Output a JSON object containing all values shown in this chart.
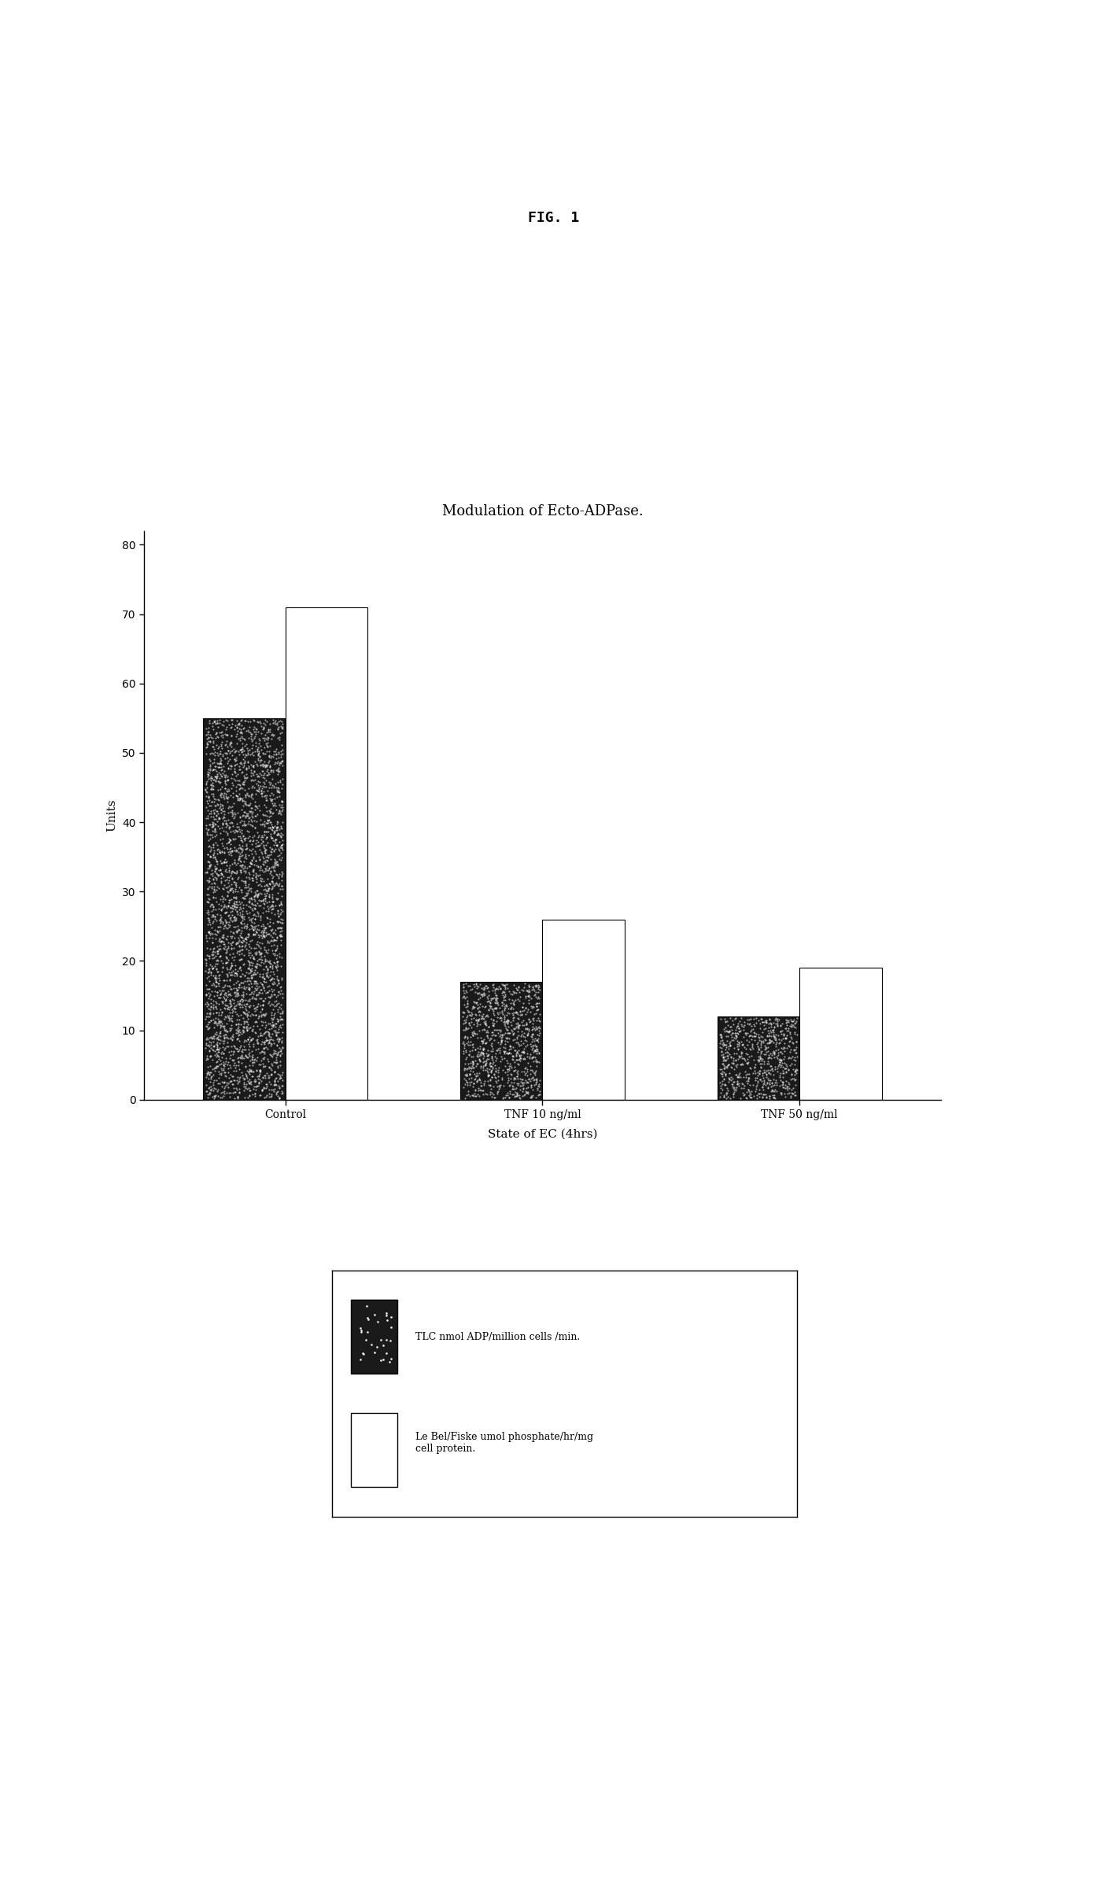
{
  "fig_title": "FIG. 1",
  "chart_title": "Modulation of Ecto-ADPase.",
  "xlabel": "State of EC (4hrs)",
  "ylabel": "Units",
  "categories": [
    "Control",
    "TNF 10 ng/ml",
    "TNF 50 ng/ml"
  ],
  "tlc_values": [
    55,
    17,
    12
  ],
  "lebel_fiske_values": [
    71,
    26,
    19
  ],
  "ylim": [
    0,
    82
  ],
  "yticks": [
    0,
    10,
    20,
    30,
    40,
    50,
    60,
    70,
    80
  ],
  "bar_width": 0.32,
  "tlc_color": "#1a1a1a",
  "lebel_fiske_color": "#ffffff",
  "background_color": "#ffffff",
  "legend_tlc_label": "TLC nmol ADP/million cells /min.",
  "legend_lbf_label": "Le Bel/Fiske umol phosphate/hr/mg\ncell protein.",
  "fig_title_fontsize": 13,
  "chart_title_fontsize": 13,
  "axis_label_fontsize": 11,
  "tick_fontsize": 10,
  "legend_fontsize": 9
}
